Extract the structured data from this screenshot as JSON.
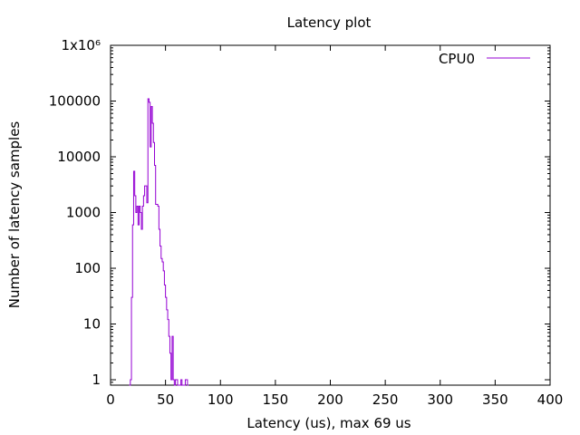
{
  "chart_data": {
    "type": "line",
    "title": "Latency plot",
    "xlabel": "Latency (us), max 69 us",
    "ylabel": "Number of latency samples",
    "xlim": [
      0,
      400
    ],
    "ylim": [
      0.8,
      1000000
    ],
    "x_scale": "linear",
    "y_scale": "log",
    "x_ticks": [
      "0",
      "50",
      "100",
      "150",
      "200",
      "250",
      "300",
      "350",
      "400"
    ],
    "y_ticks": [
      {
        "value": 1,
        "label": "1"
      },
      {
        "value": 10,
        "label": "10"
      },
      {
        "value": 100,
        "label": "100"
      },
      {
        "value": 1000,
        "label": "1000"
      },
      {
        "value": 10000,
        "label": "10000"
      },
      {
        "value": 100000,
        "label": "100000"
      },
      {
        "value": 1000000,
        "label": "1x10⁶"
      }
    ],
    "grid": false,
    "legend_position": "top-right",
    "series": [
      {
        "name": "CPU0",
        "color": "#9400d3",
        "step": "stairs",
        "points": [
          [
            17,
            0.8
          ],
          [
            18,
            1
          ],
          [
            19,
            30
          ],
          [
            20,
            600
          ],
          [
            21,
            5500
          ],
          [
            22,
            2000
          ],
          [
            23,
            1000
          ],
          [
            24,
            1300
          ],
          [
            25,
            600
          ],
          [
            26,
            1300
          ],
          [
            27,
            1000
          ],
          [
            28,
            500
          ],
          [
            29,
            1300
          ],
          [
            30,
            2000
          ],
          [
            31,
            3000
          ],
          [
            32,
            3000
          ],
          [
            33,
            1500
          ],
          [
            34,
            110000
          ],
          [
            35,
            95000
          ],
          [
            36,
            15000
          ],
          [
            37,
            80000
          ],
          [
            38,
            40000
          ],
          [
            39,
            18000
          ],
          [
            40,
            7000
          ],
          [
            41,
            1400
          ],
          [
            42,
            1400
          ],
          [
            43,
            1300
          ],
          [
            44,
            500
          ],
          [
            45,
            250
          ],
          [
            46,
            150
          ],
          [
            47,
            130
          ],
          [
            48,
            90
          ],
          [
            49,
            50
          ],
          [
            50,
            30
          ],
          [
            51,
            18
          ],
          [
            52,
            12
          ],
          [
            53,
            6
          ],
          [
            54,
            3
          ],
          [
            55,
            1
          ],
          [
            56,
            6
          ],
          [
            57,
            1
          ],
          [
            58,
            0.8
          ],
          [
            59,
            1
          ],
          [
            60,
            1
          ],
          [
            61,
            0.8
          ],
          [
            64,
            1
          ],
          [
            65,
            0.8
          ],
          [
            68,
            1
          ],
          [
            69,
            1
          ],
          [
            70,
            0.8
          ]
        ]
      }
    ]
  }
}
